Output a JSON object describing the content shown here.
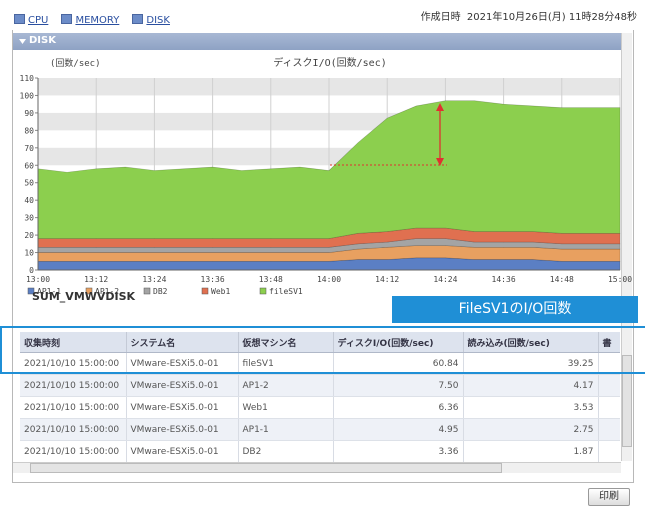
{
  "tabs": [
    "CPU",
    "MEMORY",
    "DISK"
  ],
  "created": "作成日時  2021年10月26日(月) 11時28分48秒",
  "section": "DISK",
  "chart": {
    "type": "area",
    "stacked": true,
    "title": "ディスクI/O(回数/sec)",
    "y_label": "(回数/sec)",
    "categories": [
      "13:00",
      null,
      "13:12",
      null,
      "13:24",
      null,
      "13:36",
      null,
      "13:48",
      null,
      "14:00",
      null,
      "14:12",
      null,
      "14:24",
      null,
      "14:36",
      null,
      "14:48",
      null,
      "15:00"
    ],
    "series": [
      {
        "name": "AP1-1",
        "color": "#5b7fc4",
        "values": [
          5,
          5,
          5,
          5,
          5,
          5,
          5,
          5,
          5,
          5,
          5,
          6,
          6,
          7,
          7,
          6,
          6,
          6,
          5,
          5,
          5
        ]
      },
      {
        "name": "AP1-2",
        "color": "#e8a060",
        "values": [
          5,
          5,
          5,
          5,
          5,
          5,
          5,
          5,
          5,
          5,
          5,
          6,
          7,
          7,
          7,
          7,
          7,
          7,
          7,
          7,
          7
        ]
      },
      {
        "name": "DB2",
        "color": "#a4a4a4",
        "values": [
          3,
          3,
          3,
          3,
          3,
          3,
          3,
          3,
          3,
          3,
          3,
          3,
          3,
          4,
          4,
          3,
          3,
          3,
          3,
          3,
          3
        ]
      },
      {
        "name": "Web1",
        "color": "#e07050",
        "values": [
          5,
          5,
          5,
          5,
          5,
          5,
          5,
          5,
          5,
          5,
          5,
          6,
          6,
          6,
          6,
          6,
          6,
          6,
          6,
          6,
          6
        ]
      },
      {
        "name": "fileSV1",
        "color": "#8ccf4e",
        "values": [
          40,
          38,
          40,
          41,
          39,
          40,
          41,
          39,
          40,
          41,
          39,
          52,
          65,
          70,
          73,
          75,
          73,
          72,
          72,
          72,
          72
        ]
      }
    ],
    "ylim": [
      0,
      110
    ],
    "yticks": [
      0,
      10,
      20,
      30,
      40,
      50,
      60,
      70,
      80,
      90,
      100,
      110
    ],
    "grid": true
  },
  "table": {
    "title": "SUM_VMWVDISK",
    "columns": [
      "収集時刻",
      "システム名",
      "仮想マシン名",
      "ディスクI/O(回数/sec)",
      "読み込み(回数/sec)",
      "書"
    ],
    "rows": [
      [
        "2021/10/10 15:00:00",
        "VMware-ESXi5.0-01",
        "fileSV1",
        "60.84",
        "39.25"
      ],
      [
        "2021/10/10 15:00:00",
        "VMware-ESXi5.0-01",
        "AP1-2",
        "7.50",
        "4.17"
      ],
      [
        "2021/10/10 15:00:00",
        "VMware-ESXi5.0-01",
        "Web1",
        "6.36",
        "3.53"
      ],
      [
        "2021/10/10 15:00:00",
        "VMware-ESXi5.0-01",
        "AP1-1",
        "4.95",
        "2.75"
      ],
      [
        "2021/10/10 15:00:00",
        "VMware-ESXi5.0-01",
        "DB2",
        "3.36",
        "1.87"
      ]
    ]
  },
  "annotation": "FileSV1のI/O回数",
  "print_button": "印刷"
}
